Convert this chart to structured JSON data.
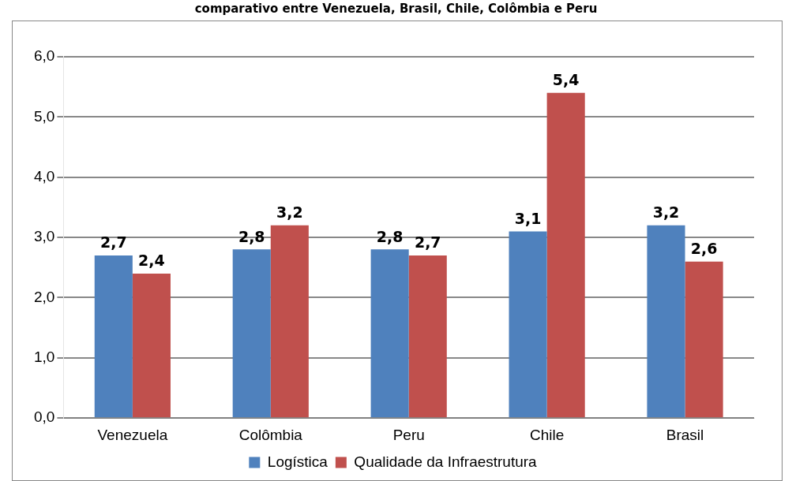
{
  "chart_data": {
    "type": "bar",
    "title": "comparativo entre Venezuela, Brasil, Chile, Colômbia e Peru",
    "categories": [
      "Venezuela",
      "Colômbia",
      "Peru",
      "Chile",
      "Brasil"
    ],
    "series": [
      {
        "name": "Logística",
        "color": "#4f81bd",
        "values": [
          2.7,
          2.8,
          2.8,
          3.1,
          3.2
        ],
        "value_labels": [
          "2,7",
          "2,8",
          "2,8",
          "3,1",
          "3,2"
        ]
      },
      {
        "name": "Qualidade da Infraestrutura",
        "color": "#c0504d",
        "values": [
          2.4,
          3.2,
          2.7,
          5.4,
          2.6
        ],
        "value_labels": [
          "2,4",
          "3,2",
          "2,7",
          "5,4",
          "2,6"
        ]
      }
    ],
    "ylim": [
      0,
      6
    ],
    "yticks": [
      {
        "value": 0,
        "label": "0,0"
      },
      {
        "value": 1,
        "label": "1,0"
      },
      {
        "value": 2,
        "label": "2,0"
      },
      {
        "value": 3,
        "label": "3,0"
      },
      {
        "value": 4,
        "label": "4,0"
      },
      {
        "value": 5,
        "label": "5,0"
      },
      {
        "value": 6,
        "label": "6,0"
      }
    ],
    "grid": "y",
    "legend": "bottom"
  }
}
